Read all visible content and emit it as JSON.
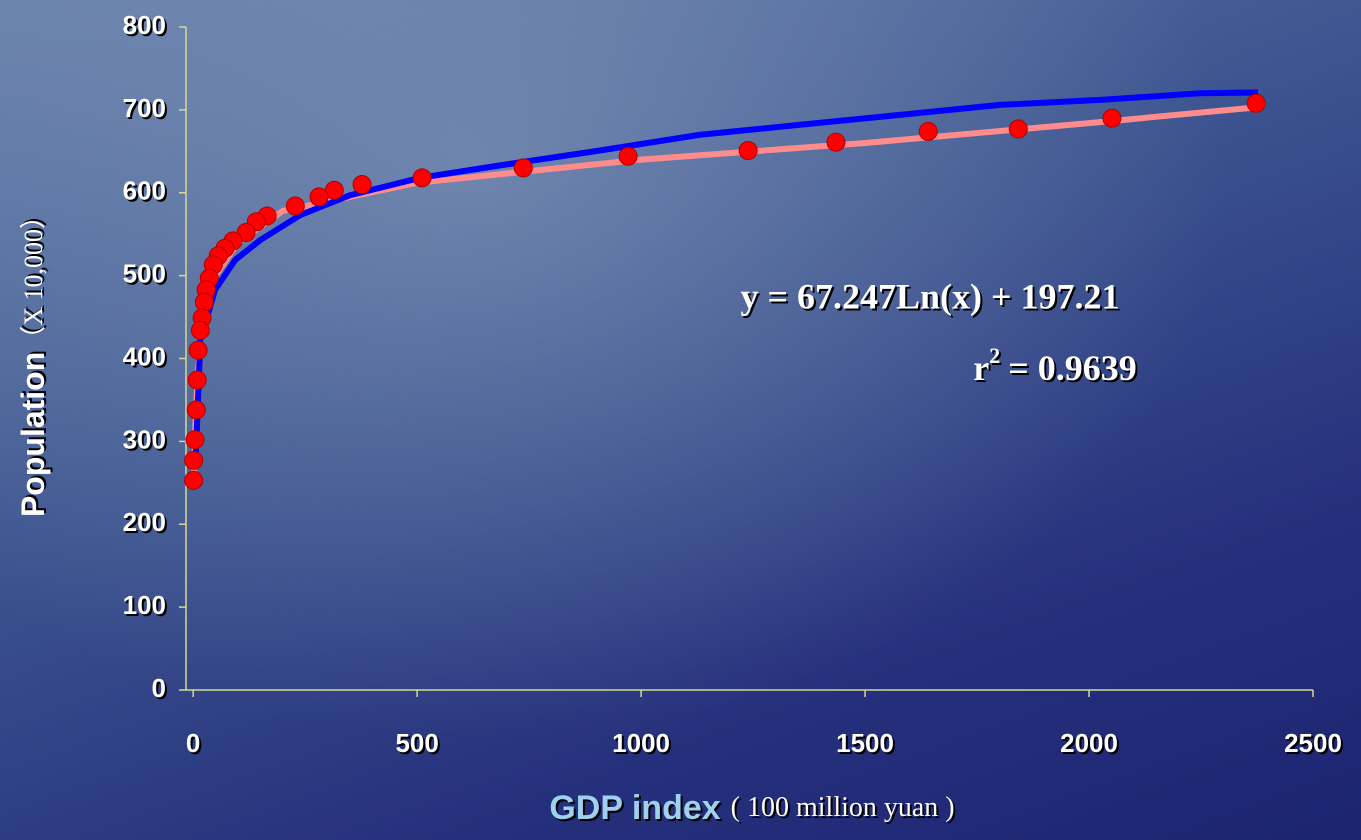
{
  "chart_data": {
    "type": "scatter",
    "x_label": "GDP index",
    "x_label_unit": "( 100 million yuan )",
    "y_label": "Population",
    "y_label_unit": "（X 10,000）",
    "annotations": [
      "y = 67.247Ln(x) + 197.21",
      "r",
      "2",
      "= 0.9639"
    ],
    "xlim": [
      -16,
      2500
    ],
    "ylim": [
      0,
      800
    ],
    "xticks": [
      0,
      500,
      1000,
      1500,
      2000,
      2500
    ],
    "yticks": [
      0,
      100,
      200,
      300,
      400,
      500,
      600,
      700,
      800
    ],
    "series": [
      {
        "type": "line",
        "color": "#ff8c8c",
        "x": [
          1,
          5,
          10,
          20,
          50,
          100,
          200,
          500,
          1000,
          1500,
          2000,
          2373
        ],
        "values": [
          250,
          320,
          380,
          440,
          500,
          540,
          578,
          612,
          640,
          660,
          684,
          703
        ]
      },
      {
        "type": "line",
        "color": "#0000ff",
        "x": [
          5,
          16,
          49,
          94,
          150,
          239,
          350,
          507,
          685,
          908,
          1132,
          1355,
          1578,
          1801,
          2025,
          2248,
          2377
        ],
        "values": [
          270,
          422,
          483,
          519,
          543,
          573,
          597,
          618,
          633,
          651,
          670,
          682,
          694,
          706,
          712,
          720,
          721
        ]
      },
      {
        "type": "scatter",
        "color": "#ff0000",
        "x": [
          2373,
          2051,
          1842,
          1641,
          1435,
          1239,
          971,
          737,
          511,
          377,
          315,
          281,
          228,
          165,
          141,
          118,
          89,
          71,
          56,
          45,
          36,
          29,
          25,
          20,
          16,
          11,
          9,
          7,
          4,
          1,
          1
        ],
        "values": [
          708,
          690,
          677,
          674,
          661,
          651,
          644,
          630,
          618,
          610,
          603,
          595,
          584,
          572,
          565,
          552,
          542,
          533,
          524,
          513,
          497,
          483,
          468,
          449,
          434,
          410,
          374,
          338,
          302,
          277,
          253
        ]
      }
    ]
  }
}
